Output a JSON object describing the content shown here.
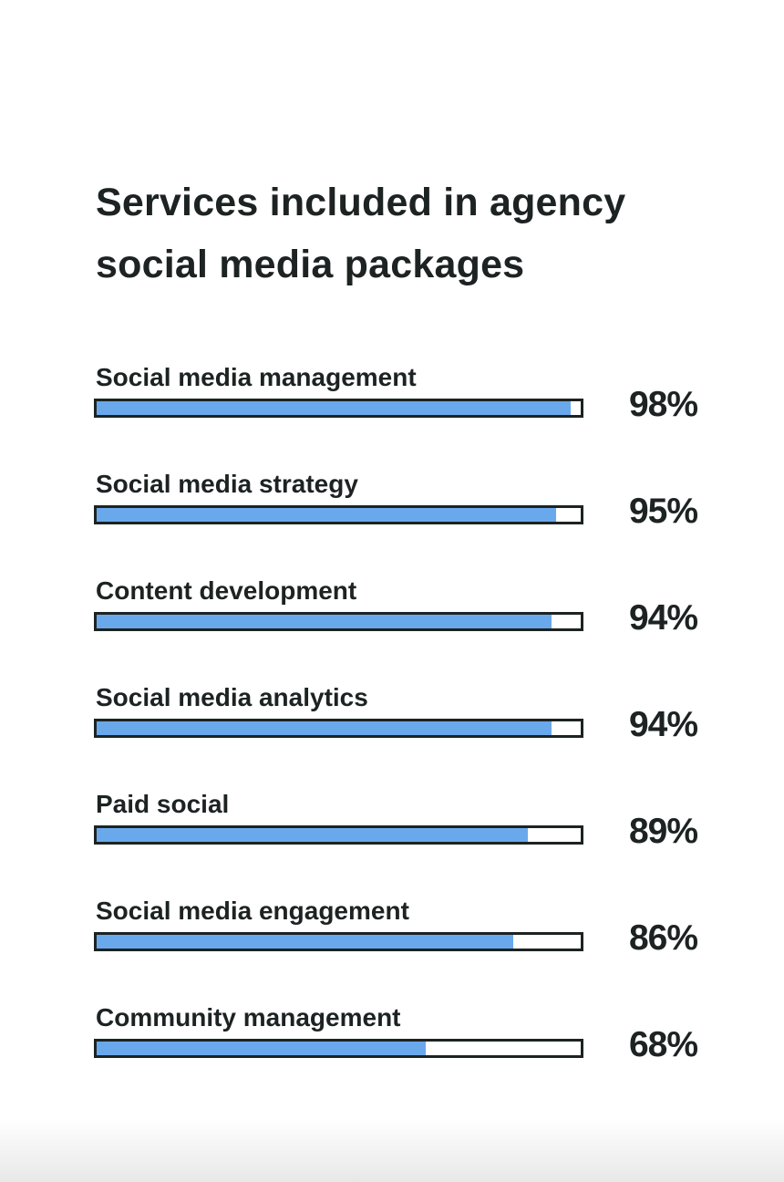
{
  "chart_data": {
    "type": "bar",
    "orientation": "horizontal",
    "title": "Services included in agency social media packages",
    "categories": [
      "Social media management",
      "Social media strategy",
      "Content development",
      "Social media analytics",
      "Paid social",
      "Social media engagement",
      "Community management"
    ],
    "values": [
      98,
      95,
      94,
      94,
      89,
      86,
      68
    ],
    "value_labels": [
      "98%",
      "95%",
      "94%",
      "94%",
      "89%",
      "86%",
      "68%"
    ],
    "xlim": [
      0,
      100
    ],
    "grid": false,
    "colors": {
      "bar": "#6aa8ec",
      "outline": "#1c2322",
      "text": "#1c2322"
    }
  }
}
